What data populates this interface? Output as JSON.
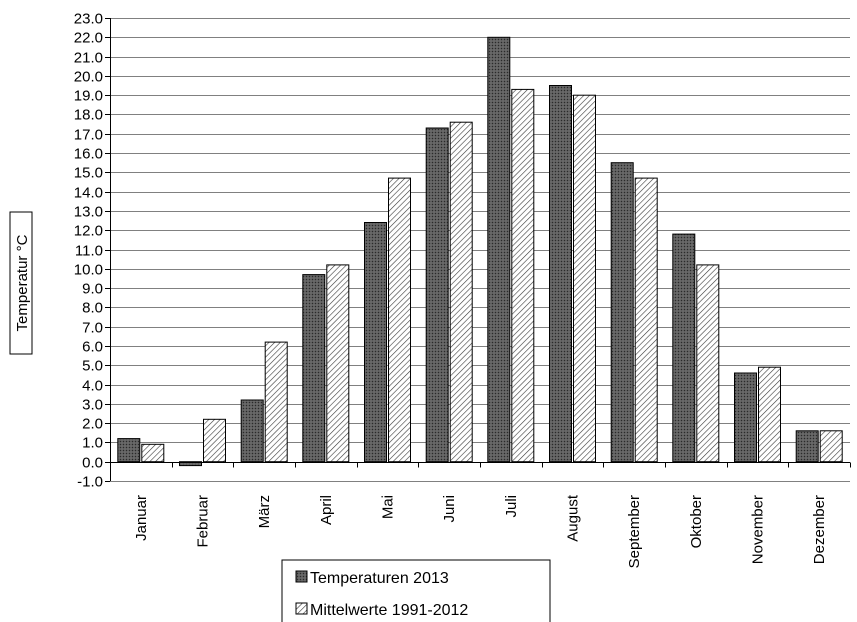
{
  "chart_data": {
    "type": "bar",
    "title": "",
    "xlabel": "",
    "ylabel": "Temperatur °C",
    "ylim": [
      -1,
      23
    ],
    "ytick_step": 1,
    "grid": true,
    "legend_placement": "bottom-center",
    "categories": [
      "Januar",
      "Februar",
      "März",
      "April",
      "Mai",
      "Juni",
      "Juli",
      "August",
      "September",
      "Oktober",
      "November",
      "Dezember"
    ],
    "series": [
      {
        "name": "Temperaturen 2013",
        "pattern": "dark-crosshatch",
        "values": [
          1.2,
          -0.2,
          3.2,
          9.7,
          12.4,
          17.3,
          22.0,
          19.5,
          15.5,
          11.8,
          4.6,
          1.6
        ]
      },
      {
        "name": "Mittelwerte 1991-2012",
        "pattern": "diagonal-hatch",
        "values": [
          0.9,
          2.2,
          6.2,
          10.2,
          14.7,
          17.6,
          19.3,
          19.0,
          14.7,
          10.2,
          4.9,
          1.6
        ]
      }
    ],
    "colors": {
      "bar_fill_dark": "#5a5a5a",
      "bar_fill_light": "#ffffff",
      "grid": "#808080",
      "axis": "#000000"
    }
  }
}
